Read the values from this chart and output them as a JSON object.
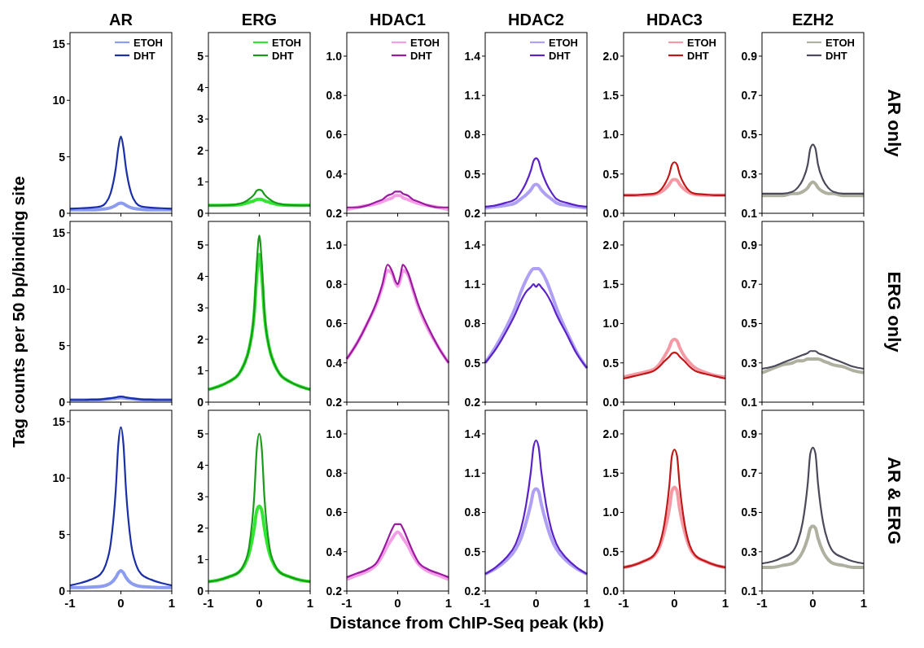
{
  "chart_data": [
    {
      "type": "line",
      "tick_labels": "y",
      "title": "AR",
      "x": [
        -1,
        -0.8,
        -0.6,
        -0.4,
        -0.3,
        -0.2,
        -0.1,
        -0.05,
        0,
        0.05,
        0.1,
        0.2,
        0.3,
        0.4,
        0.6,
        0.8,
        1
      ],
      "xlim": [
        -1,
        1
      ],
      "xticks": [
        -1,
        0,
        1
      ],
      "ylim": [
        0,
        16
      ],
      "yticks": [
        0,
        5,
        10,
        15
      ],
      "legend": "top right",
      "series": [
        {
          "name": "ETOH",
          "color": "#8c9cf0",
          "values": [
            0.3,
            0.3,
            0.3,
            0.35,
            0.4,
            0.5,
            0.7,
            0.85,
            0.9,
            0.85,
            0.7,
            0.5,
            0.4,
            0.35,
            0.3,
            0.3,
            0.3
          ]
        },
        {
          "name": "DHT",
          "color": "#1a2fa8",
          "values": [
            0.4,
            0.45,
            0.5,
            0.6,
            0.9,
            1.8,
            4.0,
            5.8,
            6.8,
            5.8,
            4.0,
            1.8,
            0.9,
            0.6,
            0.5,
            0.45,
            0.4
          ]
        }
      ]
    },
    {
      "type": "line",
      "tick_labels": "y",
      "title": "ERG",
      "x": [
        -1,
        -0.8,
        -0.6,
        -0.4,
        -0.3,
        -0.2,
        -0.1,
        -0.05,
        0,
        0.05,
        0.1,
        0.2,
        0.3,
        0.4,
        0.6,
        0.8,
        1
      ],
      "xlim": [
        -1,
        1
      ],
      "xticks": [
        -1,
        0,
        1
      ],
      "ylim": [
        0,
        5.75
      ],
      "yticks": [
        0,
        1,
        2,
        3,
        4,
        5
      ],
      "legend": "top right",
      "series": [
        {
          "name": "ETOH",
          "color": "#33e633",
          "values": [
            0.25,
            0.25,
            0.25,
            0.27,
            0.3,
            0.35,
            0.4,
            0.44,
            0.45,
            0.44,
            0.4,
            0.35,
            0.3,
            0.27,
            0.25,
            0.25,
            0.25
          ]
        },
        {
          "name": "DHT",
          "color": "#1a9a1a",
          "values": [
            0.25,
            0.25,
            0.26,
            0.3,
            0.35,
            0.45,
            0.6,
            0.72,
            0.75,
            0.72,
            0.6,
            0.45,
            0.35,
            0.3,
            0.26,
            0.25,
            0.25
          ]
        }
      ]
    },
    {
      "type": "line",
      "tick_labels": "y",
      "title": "HDAC1",
      "x": [
        -1,
        -0.8,
        -0.6,
        -0.4,
        -0.3,
        -0.2,
        -0.1,
        -0.05,
        0,
        0.05,
        0.1,
        0.2,
        0.3,
        0.4,
        0.6,
        0.8,
        1
      ],
      "xlim": [
        -1,
        1
      ],
      "xticks": [
        -1,
        0,
        1
      ],
      "ylim": [
        0.2,
        1.12
      ],
      "yticks": [
        {
          "value": 0.2,
          "label": "0.2"
        },
        {
          "value": 0.4,
          "label": "0.4"
        },
        {
          "value": 0.6,
          "label": "0.6"
        },
        {
          "value": 0.8,
          "label": "0.8"
        },
        {
          "value": 1,
          "label": "1.0"
        }
      ],
      "legend": "top right",
      "series": [
        {
          "name": "ETOH",
          "color": "#f59ee8",
          "values": [
            0.22,
            0.23,
            0.24,
            0.25,
            0.26,
            0.27,
            0.28,
            0.29,
            0.29,
            0.29,
            0.28,
            0.27,
            0.26,
            0.25,
            0.24,
            0.23,
            0.22
          ]
        },
        {
          "name": "DHT",
          "color": "#9a1aa0",
          "values": [
            0.23,
            0.23,
            0.24,
            0.26,
            0.27,
            0.29,
            0.3,
            0.31,
            0.31,
            0.31,
            0.3,
            0.29,
            0.27,
            0.26,
            0.24,
            0.23,
            0.23
          ]
        }
      ]
    },
    {
      "type": "line",
      "tick_labels": "y",
      "title": "HDAC2",
      "x": [
        -1,
        -0.8,
        -0.6,
        -0.4,
        -0.3,
        -0.2,
        -0.1,
        -0.05,
        0,
        0.05,
        0.1,
        0.2,
        0.3,
        0.4,
        0.6,
        0.8,
        1
      ],
      "xlim": [
        -1,
        1
      ],
      "xticks": [
        -1,
        0,
        1
      ],
      "ylim": [
        0.2,
        1.58
      ],
      "yticks": [
        0.2,
        0.5,
        0.8,
        1.1,
        1.4
      ],
      "legend": "top right",
      "series": [
        {
          "name": "ETOH",
          "color": "#b0a0f5",
          "values": [
            0.24,
            0.25,
            0.26,
            0.28,
            0.31,
            0.34,
            0.38,
            0.41,
            0.42,
            0.41,
            0.38,
            0.34,
            0.31,
            0.28,
            0.26,
            0.25,
            0.24
          ]
        },
        {
          "name": "DHT",
          "color": "#5a22c8",
          "values": [
            0.25,
            0.26,
            0.28,
            0.31,
            0.36,
            0.43,
            0.53,
            0.6,
            0.62,
            0.6,
            0.53,
            0.43,
            0.36,
            0.31,
            0.28,
            0.26,
            0.25
          ]
        }
      ]
    },
    {
      "type": "line",
      "tick_labels": "y",
      "title": "HDAC3",
      "x": [
        -1,
        -0.8,
        -0.6,
        -0.4,
        -0.3,
        -0.2,
        -0.1,
        -0.05,
        0,
        0.05,
        0.1,
        0.2,
        0.3,
        0.4,
        0.6,
        0.8,
        1
      ],
      "xlim": [
        -1,
        1
      ],
      "xticks": [
        -1,
        0,
        1
      ],
      "ylim": [
        0,
        2.3
      ],
      "yticks": [
        {
          "value": 0,
          "label": "0.0"
        },
        {
          "value": 0.5,
          "label": "0.5"
        },
        {
          "value": 1,
          "label": "1.0"
        },
        {
          "value": 1.5,
          "label": "1.5"
        },
        {
          "value": 2,
          "label": "2.0"
        }
      ],
      "legend": "top right",
      "series": [
        {
          "name": "ETOH",
          "color": "#f59aa5",
          "values": [
            0.23,
            0.23,
            0.23,
            0.24,
            0.26,
            0.3,
            0.37,
            0.42,
            0.43,
            0.42,
            0.37,
            0.3,
            0.26,
            0.24,
            0.23,
            0.23,
            0.23
          ]
        },
        {
          "name": "DHT",
          "color": "#c01818",
          "values": [
            0.23,
            0.23,
            0.24,
            0.25,
            0.28,
            0.36,
            0.5,
            0.62,
            0.65,
            0.62,
            0.5,
            0.36,
            0.28,
            0.25,
            0.24,
            0.23,
            0.23
          ]
        }
      ]
    },
    {
      "type": "line",
      "tick_labels": "y",
      "title": "EZH2",
      "x": [
        -1,
        -0.8,
        -0.6,
        -0.4,
        -0.3,
        -0.2,
        -0.1,
        -0.05,
        0,
        0.05,
        0.1,
        0.2,
        0.3,
        0.4,
        0.6,
        0.8,
        1
      ],
      "xlim": [
        -1,
        1
      ],
      "xticks": [
        -1,
        0,
        1
      ],
      "ylim": [
        0.1,
        1.02
      ],
      "yticks": [
        0.1,
        0.3,
        0.5,
        0.7,
        0.9
      ],
      "legend": "top right",
      "annotations": [
        "AR only"
      ],
      "series": [
        {
          "name": "ETOH",
          "color": "#b0b0a0",
          "values": [
            0.19,
            0.19,
            0.19,
            0.2,
            0.2,
            0.21,
            0.23,
            0.25,
            0.26,
            0.25,
            0.23,
            0.21,
            0.2,
            0.2,
            0.19,
            0.19,
            0.19
          ]
        },
        {
          "name": "DHT",
          "color": "#4a4a5a",
          "values": [
            0.2,
            0.2,
            0.2,
            0.21,
            0.23,
            0.27,
            0.35,
            0.43,
            0.45,
            0.43,
            0.35,
            0.27,
            0.23,
            0.21,
            0.2,
            0.2,
            0.2
          ]
        }
      ]
    },
    {
      "type": "line",
      "tick_labels": "y",
      "ylabel": "Tag counts per 50 bp/binding site",
      "x": [
        -1,
        -0.8,
        -0.6,
        -0.4,
        -0.3,
        -0.2,
        -0.1,
        -0.05,
        0,
        0.05,
        0.1,
        0.2,
        0.3,
        0.4,
        0.6,
        0.8,
        1
      ],
      "xlim": [
        -1,
        1
      ],
      "xticks": [
        -1,
        0,
        1
      ],
      "ylim": [
        0,
        16
      ],
      "yticks": [
        0,
        5,
        10,
        15
      ],
      "series": [
        {
          "color": "#8c9cf0",
          "values": [
            0.2,
            0.2,
            0.2,
            0.22,
            0.25,
            0.3,
            0.35,
            0.38,
            0.4,
            0.38,
            0.35,
            0.3,
            0.25,
            0.22,
            0.2,
            0.2,
            0.2
          ]
        },
        {
          "color": "#1a2fa8",
          "values": [
            0.2,
            0.2,
            0.22,
            0.25,
            0.3,
            0.35,
            0.42,
            0.48,
            0.5,
            0.48,
            0.42,
            0.35,
            0.3,
            0.25,
            0.22,
            0.2,
            0.2
          ]
        }
      ]
    },
    {
      "type": "line",
      "tick_labels": "y",
      "x": [
        -1,
        -0.8,
        -0.6,
        -0.4,
        -0.3,
        -0.2,
        -0.1,
        -0.05,
        0,
        0.05,
        0.1,
        0.2,
        0.3,
        0.4,
        0.6,
        0.8,
        1
      ],
      "xlim": [
        -1,
        1
      ],
      "xticks": [
        -1,
        0,
        1
      ],
      "ylim": [
        0,
        5.75
      ],
      "yticks": [
        0,
        1,
        2,
        3,
        4,
        5
      ],
      "series": [
        {
          "color": "#33e633",
          "values": [
            0.4,
            0.5,
            0.65,
            0.9,
            1.2,
            1.7,
            2.8,
            4.0,
            4.7,
            4.0,
            2.8,
            1.7,
            1.2,
            0.9,
            0.65,
            0.5,
            0.4
          ]
        },
        {
          "color": "#1a9a1a",
          "values": [
            0.4,
            0.5,
            0.65,
            0.9,
            1.2,
            1.7,
            2.9,
            4.4,
            5.3,
            4.4,
            2.9,
            1.7,
            1.2,
            0.9,
            0.65,
            0.5,
            0.4
          ]
        }
      ]
    },
    {
      "type": "line",
      "x": [
        -1,
        -0.8,
        -0.6,
        -0.4,
        -0.3,
        -0.2,
        -0.1,
        -0.05,
        0,
        0.05,
        0.1,
        0.2,
        0.3,
        0.4,
        0.6,
        0.8,
        1
      ],
      "xlim": [
        -1,
        1
      ],
      "xticks": [
        -1,
        0,
        1
      ],
      "ylim": [
        0.2,
        1.12
      ],
      "yticks": [
        {
          "value": 0.2,
          "label": "0.2"
        },
        {
          "value": 0.4,
          "label": "0.4"
        },
        {
          "value": 0.6,
          "label": "0.6"
        },
        {
          "value": 0.8,
          "label": "0.8"
        },
        {
          "value": 1,
          "label": "1.0"
        }
      ],
      "tick_labels": "y",
      "series": [
        {
          "color": "#f59ee8",
          "values": [
            0.42,
            0.5,
            0.6,
            0.71,
            0.79,
            0.87,
            0.85,
            0.81,
            0.79,
            0.82,
            0.87,
            0.85,
            0.77,
            0.69,
            0.57,
            0.48,
            0.4
          ]
        },
        {
          "color": "#9a1aa0",
          "values": [
            0.42,
            0.5,
            0.6,
            0.72,
            0.8,
            0.9,
            0.86,
            0.82,
            0.8,
            0.84,
            0.9,
            0.86,
            0.78,
            0.7,
            0.58,
            0.48,
            0.4
          ]
        }
      ]
    },
    {
      "type": "line",
      "x": [
        -1,
        -0.8,
        -0.6,
        -0.4,
        -0.3,
        -0.2,
        -0.1,
        -0.05,
        0,
        0.05,
        0.1,
        0.2,
        0.3,
        0.4,
        0.6,
        0.8,
        1
      ],
      "xlim": [
        -1,
        1
      ],
      "xticks": [
        -1,
        0,
        1
      ],
      "ylim": [
        0.2,
        1.58
      ],
      "yticks": [
        0.2,
        0.5,
        0.8,
        1.1,
        1.4
      ],
      "tick_labels": "y",
      "series": [
        {
          "color": "#b0a0f5",
          "values": [
            0.5,
            0.62,
            0.76,
            0.93,
            1.04,
            1.13,
            1.2,
            1.22,
            1.22,
            1.22,
            1.2,
            1.13,
            1.03,
            0.92,
            0.74,
            0.58,
            0.46
          ]
        },
        {
          "color": "#5a22c8",
          "values": [
            0.5,
            0.6,
            0.73,
            0.88,
            0.97,
            1.04,
            1.08,
            1.1,
            1.08,
            1.1,
            1.08,
            1.03,
            0.96,
            0.87,
            0.72,
            0.57,
            0.46
          ]
        }
      ]
    },
    {
      "type": "line",
      "x": [
        -1,
        -0.8,
        -0.6,
        -0.4,
        -0.3,
        -0.2,
        -0.1,
        -0.05,
        0,
        0.05,
        0.1,
        0.2,
        0.3,
        0.4,
        0.6,
        0.8,
        1
      ],
      "xlim": [
        -1,
        1
      ],
      "xticks": [
        -1,
        0,
        1
      ],
      "ylim": [
        0,
        2.3
      ],
      "yticks": [
        {
          "value": 0,
          "label": "0.0"
        },
        {
          "value": 0.5,
          "label": "0.5"
        },
        {
          "value": 1,
          "label": "1.0"
        },
        {
          "value": 1.5,
          "label": "1.5"
        },
        {
          "value": 2,
          "label": "2.0"
        }
      ],
      "tick_labels": "y",
      "series": [
        {
          "color": "#f59aa5",
          "values": [
            0.32,
            0.35,
            0.38,
            0.42,
            0.48,
            0.58,
            0.7,
            0.78,
            0.8,
            0.78,
            0.7,
            0.58,
            0.5,
            0.44,
            0.38,
            0.34,
            0.32
          ]
        },
        {
          "color": "#c01818",
          "values": [
            0.3,
            0.33,
            0.36,
            0.4,
            0.45,
            0.52,
            0.58,
            0.62,
            0.63,
            0.62,
            0.58,
            0.52,
            0.45,
            0.4,
            0.36,
            0.33,
            0.3
          ]
        }
      ]
    },
    {
      "type": "line",
      "tick_labels": "y",
      "annotations": [
        "ERG only"
      ],
      "x": [
        -1,
        -0.8,
        -0.6,
        -0.4,
        -0.3,
        -0.2,
        -0.1,
        -0.05,
        0,
        0.05,
        0.1,
        0.2,
        0.3,
        0.4,
        0.6,
        0.8,
        1
      ],
      "xlim": [
        -1,
        1
      ],
      "xticks": [
        -1,
        0,
        1
      ],
      "ylim": [
        0.1,
        1.02
      ],
      "yticks": [
        0.1,
        0.3,
        0.5,
        0.7,
        0.9
      ],
      "series": [
        {
          "color": "#b0b0a0",
          "values": [
            0.25,
            0.27,
            0.29,
            0.3,
            0.31,
            0.31,
            0.32,
            0.32,
            0.32,
            0.32,
            0.32,
            0.31,
            0.3,
            0.29,
            0.28,
            0.26,
            0.25
          ]
        },
        {
          "color": "#4a4a5a",
          "values": [
            0.27,
            0.28,
            0.3,
            0.32,
            0.33,
            0.34,
            0.35,
            0.36,
            0.36,
            0.36,
            0.35,
            0.34,
            0.33,
            0.32,
            0.3,
            0.28,
            0.27
          ]
        }
      ]
    },
    {
      "type": "line",
      "x": [
        -1,
        -0.8,
        -0.6,
        -0.4,
        -0.3,
        -0.2,
        -0.1,
        -0.05,
        0,
        0.05,
        0.1,
        0.2,
        0.3,
        0.4,
        0.6,
        0.8,
        1
      ],
      "xlim": [
        -1,
        1
      ],
      "xticks": [
        -1,
        0,
        1
      ],
      "ylim": [
        0,
        16
      ],
      "yticks": [
        0,
        5,
        10,
        15
      ],
      "series": [
        {
          "color": "#8c9cf0",
          "values": [
            0.3,
            0.3,
            0.35,
            0.4,
            0.5,
            0.7,
            1.2,
            1.6,
            1.8,
            1.6,
            1.2,
            0.7,
            0.5,
            0.4,
            0.35,
            0.3,
            0.3
          ]
        },
        {
          "color": "#1a2fa8",
          "values": [
            0.5,
            0.7,
            1.0,
            1.5,
            2.3,
            4.2,
            9.0,
            13.0,
            14.5,
            13.0,
            9.0,
            4.2,
            2.3,
            1.5,
            1.0,
            0.7,
            0.5
          ]
        }
      ]
    },
    {
      "type": "line",
      "x": [
        -1,
        -0.8,
        -0.6,
        -0.4,
        -0.3,
        -0.2,
        -0.1,
        -0.05,
        0,
        0.05,
        0.1,
        0.2,
        0.3,
        0.4,
        0.6,
        0.8,
        1
      ],
      "xlim": [
        -1,
        1
      ],
      "xticks": [
        -1,
        0,
        1
      ],
      "ylim": [
        0,
        5.75
      ],
      "yticks": [
        0,
        1,
        2,
        3,
        4,
        5
      ],
      "series": [
        {
          "color": "#33e633",
          "values": [
            0.3,
            0.35,
            0.45,
            0.6,
            0.8,
            1.2,
            2.0,
            2.55,
            2.7,
            2.55,
            2.0,
            1.2,
            0.8,
            0.6,
            0.45,
            0.35,
            0.3
          ]
        },
        {
          "color": "#1a9a1a",
          "values": [
            0.3,
            0.35,
            0.45,
            0.6,
            0.85,
            1.4,
            3.0,
            4.5,
            5.0,
            4.5,
            3.0,
            1.4,
            0.85,
            0.6,
            0.45,
            0.35,
            0.3
          ]
        }
      ]
    },
    {
      "type": "line",
      "xlabel": "Distance from ChIP-Seq peak (kb)",
      "x": [
        -1,
        -0.8,
        -0.6,
        -0.4,
        -0.3,
        -0.2,
        -0.1,
        -0.05,
        0,
        0.05,
        0.1,
        0.2,
        0.3,
        0.4,
        0.6,
        0.8,
        1
      ],
      "xlim": [
        -1,
        1
      ],
      "xticks": [
        -1,
        0,
        1
      ],
      "ylim": [
        0.2,
        1.12
      ],
      "yticks": [
        {
          "value": 0.2,
          "label": "0.2"
        },
        {
          "value": 0.4,
          "label": "0.4"
        },
        {
          "value": 0.6,
          "label": "0.6"
        },
        {
          "value": 0.8,
          "label": "0.8"
        },
        {
          "value": 1,
          "label": "1.0"
        }
      ],
      "series": [
        {
          "color": "#f59ee8",
          "values": [
            0.26,
            0.28,
            0.3,
            0.34,
            0.38,
            0.43,
            0.47,
            0.49,
            0.5,
            0.49,
            0.47,
            0.43,
            0.38,
            0.34,
            0.3,
            0.28,
            0.26
          ]
        },
        {
          "color": "#9a1aa0",
          "values": [
            0.27,
            0.29,
            0.31,
            0.35,
            0.4,
            0.46,
            0.52,
            0.54,
            0.54,
            0.54,
            0.52,
            0.46,
            0.4,
            0.35,
            0.31,
            0.29,
            0.27
          ]
        }
      ]
    },
    {
      "type": "line",
      "x": [
        -1,
        -0.8,
        -0.6,
        -0.4,
        -0.3,
        -0.2,
        -0.1,
        -0.05,
        0,
        0.05,
        0.1,
        0.2,
        0.3,
        0.4,
        0.6,
        0.8,
        1
      ],
      "xlim": [
        -1,
        1
      ],
      "xticks": [
        -1,
        0,
        1
      ],
      "ylim": [
        0.2,
        1.58
      ],
      "yticks": [
        0.2,
        0.5,
        0.8,
        1.1,
        1.4
      ],
      "series": [
        {
          "color": "#b0a0f5",
          "values": [
            0.33,
            0.37,
            0.43,
            0.52,
            0.6,
            0.72,
            0.87,
            0.96,
            0.98,
            0.96,
            0.87,
            0.72,
            0.6,
            0.52,
            0.43,
            0.37,
            0.33
          ]
        },
        {
          "color": "#5a22c8",
          "values": [
            0.33,
            0.38,
            0.45,
            0.56,
            0.67,
            0.85,
            1.12,
            1.3,
            1.35,
            1.3,
            1.12,
            0.85,
            0.67,
            0.56,
            0.45,
            0.38,
            0.33
          ]
        }
      ]
    },
    {
      "type": "line",
      "x": [
        -1,
        -0.8,
        -0.6,
        -0.4,
        -0.3,
        -0.2,
        -0.1,
        -0.05,
        0,
        0.05,
        0.1,
        0.2,
        0.3,
        0.4,
        0.6,
        0.8,
        1
      ],
      "xlim": [
        -1,
        1
      ],
      "xticks": [
        -1,
        0,
        1
      ],
      "ylim": [
        0,
        2.3
      ],
      "yticks": [
        {
          "value": 0,
          "label": "0.0"
        },
        {
          "value": 0.5,
          "label": "0.5"
        },
        {
          "value": 1,
          "label": "1.0"
        },
        {
          "value": 1.5,
          "label": "1.5"
        },
        {
          "value": 2,
          "label": "2.0"
        }
      ],
      "series": [
        {
          "color": "#f59aa5",
          "values": [
            0.3,
            0.33,
            0.38,
            0.45,
            0.55,
            0.75,
            1.05,
            1.27,
            1.32,
            1.27,
            1.05,
            0.75,
            0.55,
            0.45,
            0.38,
            0.33,
            0.3
          ]
        },
        {
          "color": "#c01818",
          "values": [
            0.3,
            0.33,
            0.38,
            0.46,
            0.58,
            0.85,
            1.35,
            1.72,
            1.8,
            1.72,
            1.35,
            0.85,
            0.58,
            0.46,
            0.38,
            0.33,
            0.3
          ]
        }
      ]
    },
    {
      "type": "line",
      "annotations": [
        "AR & ERG"
      ],
      "x": [
        -1,
        -0.8,
        -0.6,
        -0.4,
        -0.3,
        -0.2,
        -0.1,
        -0.05,
        0,
        0.05,
        0.1,
        0.2,
        0.3,
        0.4,
        0.6,
        0.8,
        1
      ],
      "xlim": [
        -1,
        1
      ],
      "xticks": [
        -1,
        0,
        1
      ],
      "ylim": [
        0.1,
        1.02
      ],
      "yticks": [
        0.1,
        0.3,
        0.5,
        0.7,
        0.9
      ],
      "series": [
        {
          "color": "#b0b0a0",
          "values": [
            0.22,
            0.22,
            0.23,
            0.24,
            0.26,
            0.3,
            0.37,
            0.42,
            0.43,
            0.42,
            0.37,
            0.3,
            0.26,
            0.24,
            0.23,
            0.22,
            0.22
          ]
        },
        {
          "color": "#4a4a5a",
          "values": [
            0.24,
            0.25,
            0.27,
            0.3,
            0.35,
            0.45,
            0.65,
            0.8,
            0.83,
            0.8,
            0.65,
            0.45,
            0.35,
            0.3,
            0.27,
            0.25,
            0.24
          ]
        }
      ]
    }
  ]
}
